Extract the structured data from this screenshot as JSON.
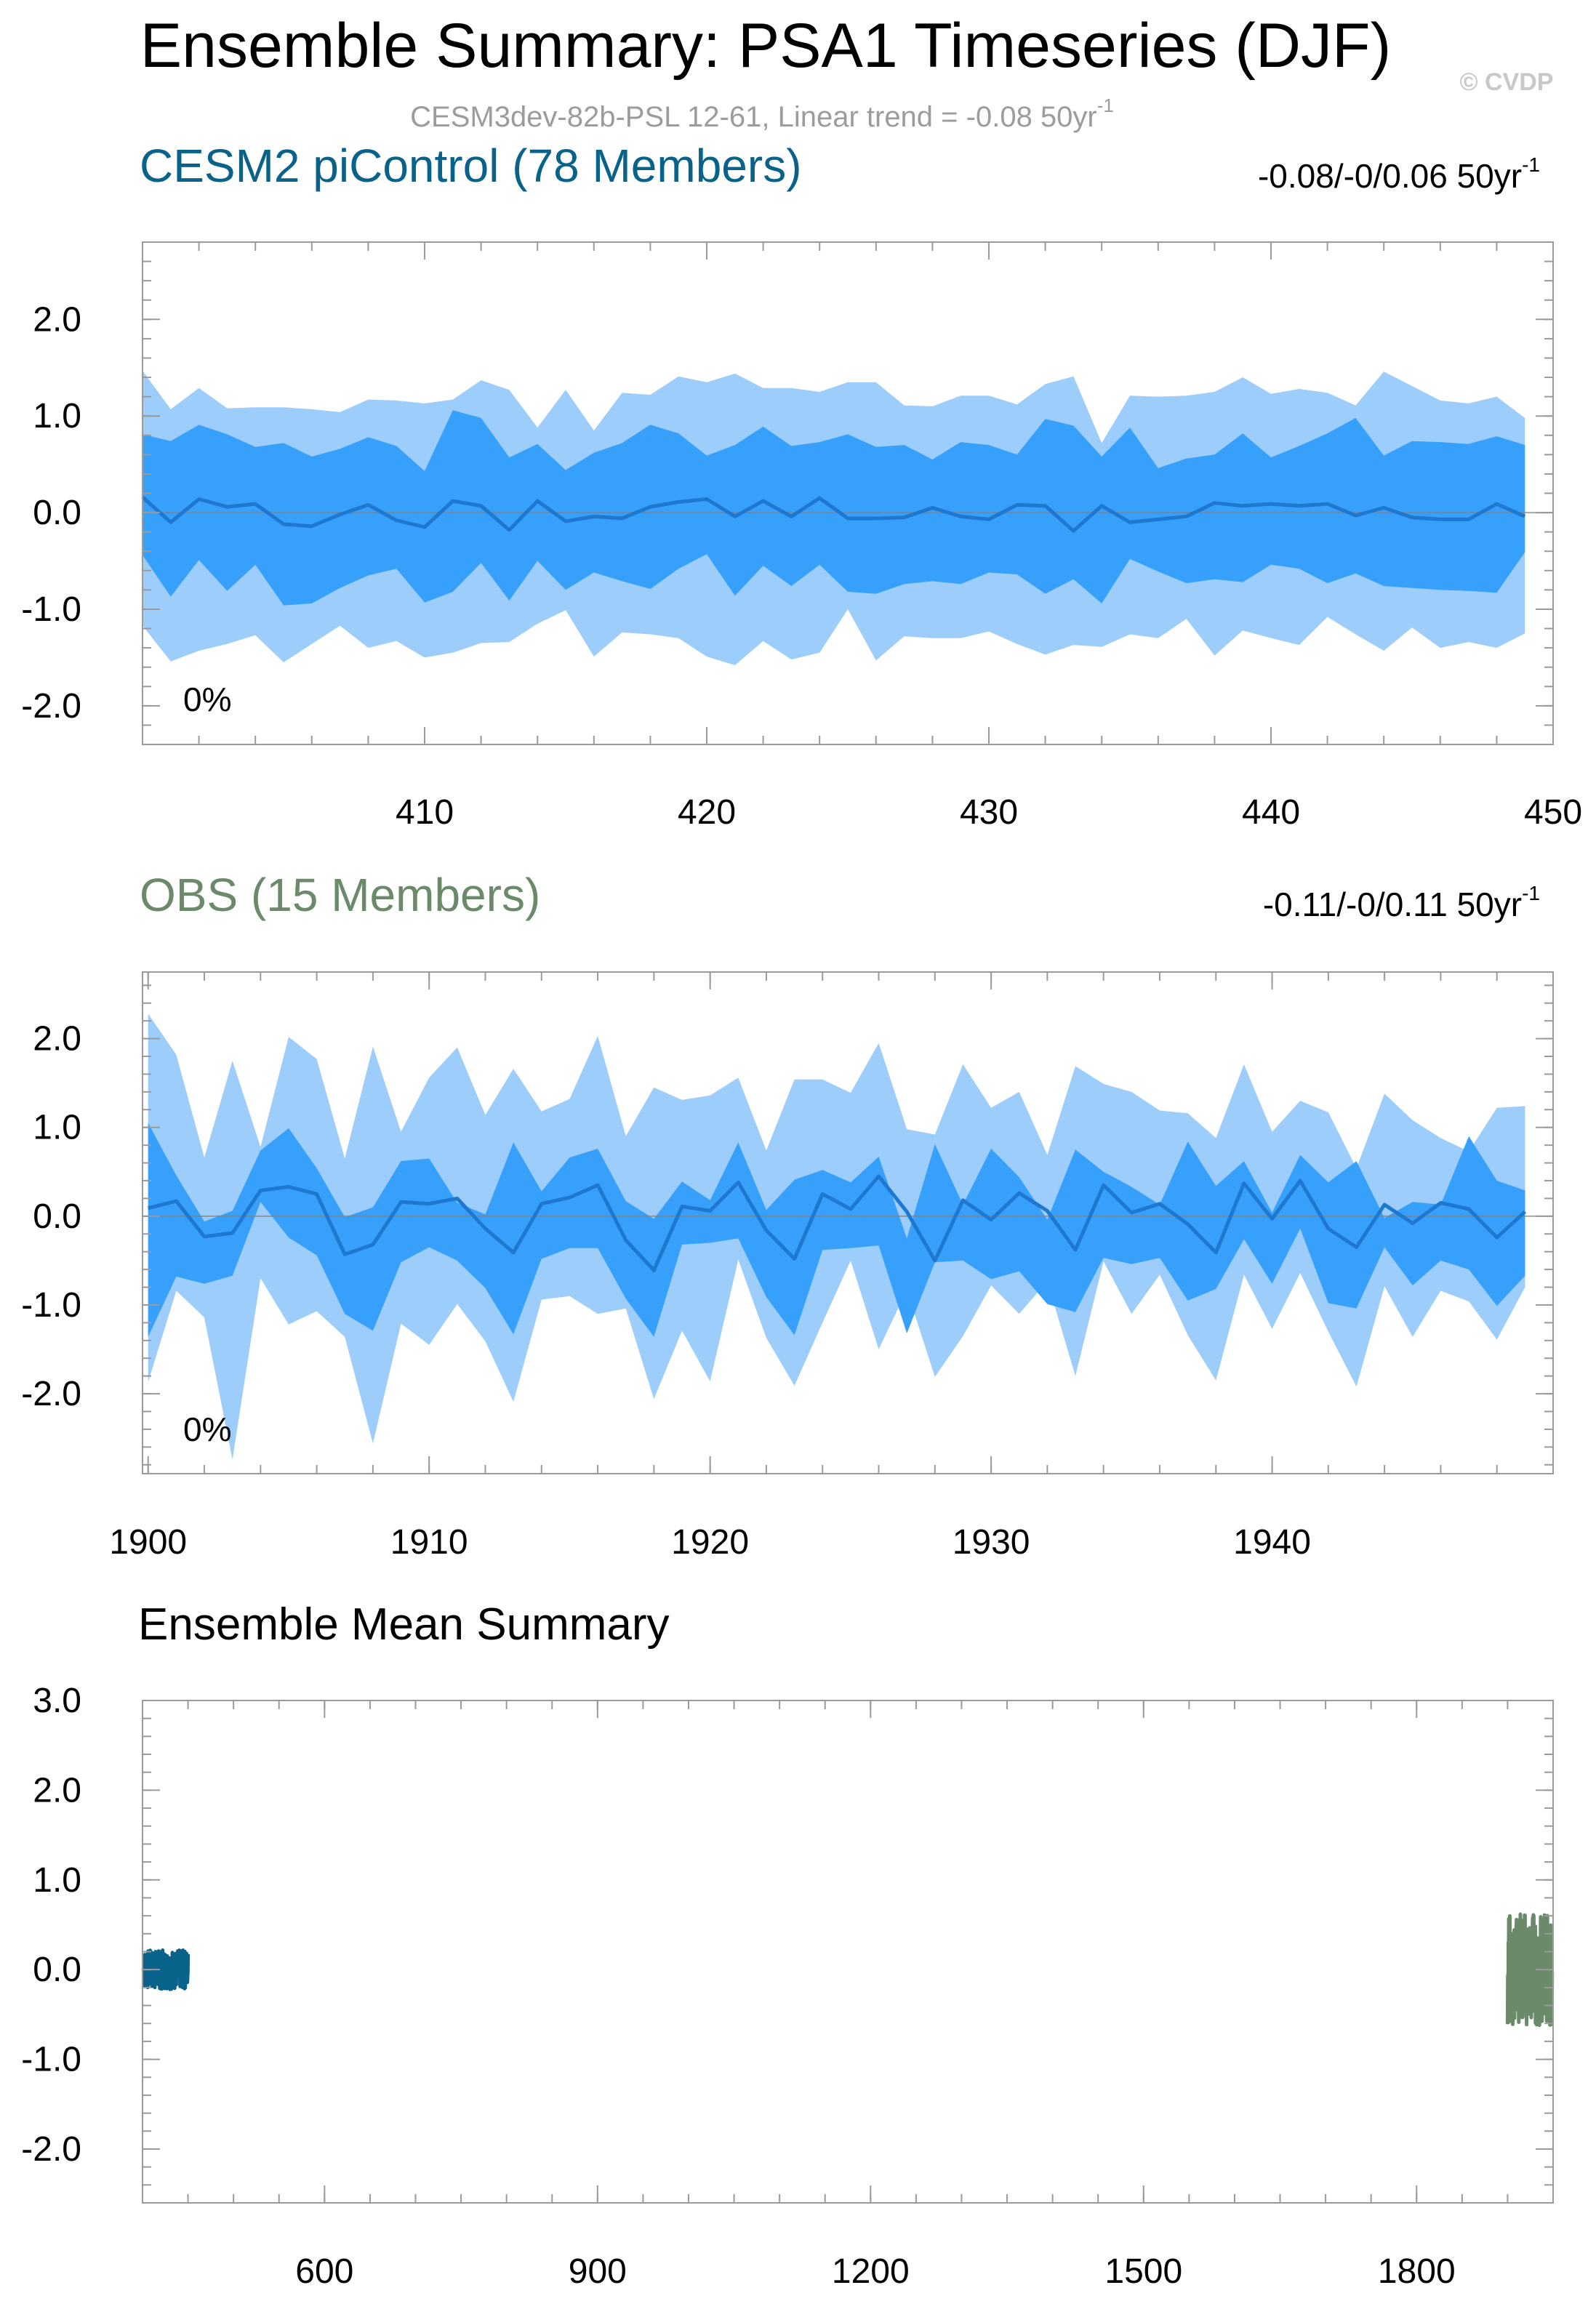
{
  "figure": {
    "title": "Ensemble Summary: PSA1 Timeseries (DJF)",
    "watermark": "© CVDP",
    "subtitle_main": "CESM3dev-82b-PSL 12-61, Linear trend = -0.08 50yr",
    "subtitle_sup": "-1"
  },
  "colors": {
    "outer_band": "#9dcdfb",
    "inner_band": "#36a0fb",
    "mean_line": "#1e78d0",
    "zero_line": "#808080",
    "cesm_title": "#08628a",
    "obs_title": "#6a8a6a",
    "subtitle": "#9c9c9c"
  },
  "chart_data": [
    {
      "type": "area",
      "panel": "top",
      "title": "CESM2 piControl (78 Members)",
      "trend_text": "-0.08/-0/0.06 50yr",
      "trend_sup": "-1",
      "percent_label": "0%",
      "xlim": [
        400,
        450
      ],
      "ylim": [
        -2.4,
        2.8
      ],
      "xticks": [
        410,
        420,
        430,
        440,
        450
      ],
      "xtick_labels": [
        "410",
        "420",
        "430",
        "440",
        "450"
      ],
      "yticks": [
        -2,
        -1,
        0,
        1,
        2
      ],
      "ytick_labels": [
        "-2.0",
        "-1.0",
        "0.0",
        "1.0",
        "2.0"
      ],
      "x_start": 400,
      "series": [
        {
          "name": "max",
          "values": [
            1.47,
            1.07,
            1.29,
            1.08,
            1.09,
            1.09,
            1.07,
            1.04,
            1.17,
            1.16,
            1.13,
            1.17,
            1.37,
            1.27,
            0.88,
            1.27,
            0.85,
            1.24,
            1.22,
            1.41,
            1.35,
            1.44,
            1.29,
            1.29,
            1.25,
            1.35,
            1.35,
            1.11,
            1.1,
            1.21,
            1.21,
            1.12,
            1.33,
            1.41,
            0.72,
            1.21,
            1.2,
            1.21,
            1.25,
            1.4,
            1.23,
            1.28,
            1.24,
            1.11,
            1.46,
            1.31,
            1.16,
            1.13,
            1.2,
            0.98
          ]
        },
        {
          "name": "p75",
          "values": [
            0.81,
            0.74,
            0.91,
            0.81,
            0.68,
            0.72,
            0.58,
            0.66,
            0.78,
            0.69,
            0.43,
            1.06,
            0.98,
            0.57,
            0.71,
            0.44,
            0.62,
            0.72,
            0.91,
            0.82,
            0.59,
            0.7,
            0.89,
            0.69,
            0.73,
            0.81,
            0.68,
            0.7,
            0.55,
            0.73,
            0.7,
            0.6,
            0.97,
            0.9,
            0.58,
            0.88,
            0.46,
            0.56,
            0.6,
            0.82,
            0.57,
            0.69,
            0.82,
            0.98,
            0.59,
            0.74,
            0.73,
            0.71,
            0.79,
            0.7
          ]
        },
        {
          "name": "mean",
          "values": [
            0.16,
            -0.1,
            0.14,
            0.06,
            0.09,
            -0.12,
            -0.14,
            -0.02,
            0.08,
            -0.08,
            -0.15,
            0.12,
            0.07,
            -0.18,
            0.12,
            -0.09,
            -0.04,
            -0.06,
            0.06,
            0.11,
            0.14,
            -0.04,
            0.12,
            -0.04,
            0.15,
            -0.06,
            -0.06,
            -0.05,
            0.05,
            -0.04,
            -0.07,
            0.08,
            0.07,
            -0.19,
            0.07,
            -0.1,
            -0.07,
            -0.04,
            0.1,
            0.07,
            0.09,
            0.07,
            0.09,
            -0.03,
            0.05,
            -0.05,
            -0.07,
            -0.07,
            0.09,
            -0.04
          ]
        },
        {
          "name": "p25",
          "values": [
            -0.44,
            -0.87,
            -0.49,
            -0.81,
            -0.54,
            -0.96,
            -0.94,
            -0.78,
            -0.65,
            -0.58,
            -0.93,
            -0.82,
            -0.52,
            -0.91,
            -0.5,
            -0.8,
            -0.62,
            -0.71,
            -0.79,
            -0.58,
            -0.43,
            -0.86,
            -0.55,
            -0.76,
            -0.54,
            -0.82,
            -0.84,
            -0.74,
            -0.71,
            -0.74,
            -0.62,
            -0.64,
            -0.84,
            -0.69,
            -0.94,
            -0.48,
            -0.61,
            -0.73,
            -0.69,
            -0.72,
            -0.54,
            -0.58,
            -0.73,
            -0.63,
            -0.76,
            -0.78,
            -0.8,
            -0.81,
            -0.83,
            -0.41
          ]
        },
        {
          "name": "min",
          "values": [
            -1.17,
            -1.54,
            -1.43,
            -1.36,
            -1.27,
            -1.55,
            -1.36,
            -1.17,
            -1.4,
            -1.33,
            -1.5,
            -1.45,
            -1.35,
            -1.34,
            -1.15,
            -1.01,
            -1.49,
            -1.24,
            -1.26,
            -1.3,
            -1.49,
            -1.58,
            -1.33,
            -1.52,
            -1.45,
            -1.0,
            -1.53,
            -1.28,
            -1.3,
            -1.3,
            -1.23,
            -1.36,
            -1.47,
            -1.37,
            -1.39,
            -1.26,
            -1.3,
            -1.1,
            -1.48,
            -1.22,
            -1.3,
            -1.37,
            -1.08,
            -1.26,
            -1.43,
            -1.19,
            -1.4,
            -1.34,
            -1.4,
            -1.25
          ]
        }
      ]
    },
    {
      "type": "area",
      "panel": "middle",
      "title": "OBS (15 Members)",
      "trend_text": "-0.11/-0/0.11 50yr",
      "trend_sup": "-1",
      "percent_label": "0%",
      "xlim": [
        1899.8,
        1950.0
      ],
      "ylim": [
        -2.9,
        2.75
      ],
      "xticks": [
        1900,
        1910,
        1920,
        1930,
        1940
      ],
      "xtick_labels": [
        "1900",
        "1910",
        "1920",
        "1930",
        "1940"
      ],
      "yticks": [
        -2,
        -1,
        0,
        1,
        2
      ],
      "ytick_labels": [
        "-2.0",
        "-1.0",
        "0.0",
        "1.0",
        "2.0"
      ],
      "x_start": 1900,
      "series": [
        {
          "name": "max",
          "values": [
            2.28,
            1.82,
            0.66,
            1.75,
            0.78,
            2.02,
            1.77,
            0.65,
            1.91,
            0.95,
            1.56,
            1.9,
            1.14,
            1.66,
            1.18,
            1.32,
            2.03,
            0.9,
            1.45,
            1.31,
            1.36,
            1.56,
            0.74,
            1.54,
            1.54,
            1.39,
            1.95,
            0.98,
            0.92,
            1.71,
            1.22,
            1.4,
            0.69,
            1.69,
            1.49,
            1.4,
            1.19,
            1.16,
            0.88,
            1.71,
            0.95,
            1.3,
            1.17,
            0.54,
            1.38,
            1.08,
            0.88,
            0.73,
            1.22,
            1.24
          ]
        },
        {
          "name": "p75",
          "values": [
            1.05,
            0.46,
            -0.06,
            0.06,
            0.74,
            0.99,
            0.54,
            -0.01,
            0.1,
            0.62,
            0.65,
            0.15,
            0.02,
            0.83,
            0.28,
            0.66,
            0.76,
            0.17,
            -0.03,
            0.39,
            0.18,
            0.83,
            0.07,
            0.41,
            0.52,
            0.38,
            0.67,
            -0.25,
            0.81,
            0.13,
            0.76,
            0.44,
            -0.04,
            0.75,
            0.5,
            0.33,
            0.13,
            0.84,
            0.34,
            0.62,
            0.04,
            0.69,
            0.38,
            0.62,
            -0.02,
            0.16,
            0.13,
            0.9,
            0.4,
            0.29
          ]
        },
        {
          "name": "mean",
          "values": [
            0.09,
            0.17,
            -0.23,
            -0.19,
            0.29,
            0.33,
            0.25,
            -0.43,
            -0.32,
            0.16,
            0.14,
            0.2,
            -0.14,
            -0.41,
            0.14,
            0.21,
            0.35,
            -0.27,
            -0.61,
            0.11,
            0.06,
            0.38,
            -0.16,
            -0.48,
            0.25,
            0.08,
            0.45,
            0.05,
            -0.5,
            0.18,
            -0.04,
            0.26,
            0.06,
            -0.38,
            0.35,
            0.04,
            0.14,
            -0.09,
            -0.41,
            0.37,
            -0.03,
            0.4,
            -0.14,
            -0.35,
            0.13,
            -0.08,
            0.15,
            0.08,
            -0.24,
            0.05
          ]
        },
        {
          "name": "p25",
          "values": [
            -1.36,
            -0.68,
            -0.76,
            -0.67,
            0.16,
            -0.24,
            -0.44,
            -1.1,
            -1.29,
            -0.52,
            -0.35,
            -0.5,
            -0.81,
            -1.33,
            -0.48,
            -0.36,
            -0.36,
            -0.93,
            -1.36,
            -0.32,
            -0.3,
            -0.25,
            -0.91,
            -1.34,
            -0.38,
            -0.36,
            -0.33,
            -1.32,
            -0.52,
            -0.5,
            -0.71,
            -0.62,
            -0.99,
            -1.08,
            -0.47,
            -0.54,
            -0.47,
            -0.95,
            -0.82,
            -0.26,
            -0.76,
            -0.14,
            -0.98,
            -1.04,
            -0.35,
            -0.78,
            -0.5,
            -0.6,
            -1.01,
            -0.67
          ]
        },
        {
          "name": "min",
          "values": [
            -1.87,
            -0.84,
            -1.14,
            -2.74,
            -0.7,
            -1.22,
            -1.07,
            -1.36,
            -2.56,
            -1.21,
            -1.45,
            -0.99,
            -1.41,
            -2.09,
            -0.94,
            -0.9,
            -1.1,
            -1.04,
            -2.06,
            -1.29,
            -1.86,
            -0.49,
            -1.37,
            -1.91,
            -1.2,
            -0.5,
            -1.5,
            -0.83,
            -1.81,
            -1.35,
            -0.78,
            -1.1,
            -0.73,
            -1.8,
            -0.51,
            -1.1,
            -0.66,
            -1.34,
            -1.85,
            -0.66,
            -1.27,
            -0.64,
            -1.3,
            -1.92,
            -0.79,
            -1.36,
            -0.84,
            -0.96,
            -1.39,
            -0.8
          ]
        }
      ]
    },
    {
      "type": "line",
      "panel": "bottom",
      "title": "Ensemble Mean Summary",
      "xlim": [
        400,
        1950
      ],
      "ylim": [
        -2.6,
        3.0
      ],
      "xticks": [
        600,
        900,
        1200,
        1500,
        1800
      ],
      "xtick_labels": [
        "600",
        "900",
        "1200",
        "1500",
        "1800"
      ],
      "yticks": [
        -2,
        -1,
        0,
        1,
        2,
        3
      ],
      "ytick_labels": [
        "-2.0",
        "-1.0",
        "0.0",
        "1.0",
        "2.0",
        "3.0"
      ],
      "series": [
        {
          "name": "CESM2 piControl",
          "color": "#08628a",
          "x_start": 401,
          "x_end": 450,
          "amplitude": 0.22
        },
        {
          "name": "OBS",
          "color": "#6a8a6a",
          "x_start": 1900,
          "x_end": 1949,
          "amplitude": 0.62
        }
      ]
    }
  ]
}
